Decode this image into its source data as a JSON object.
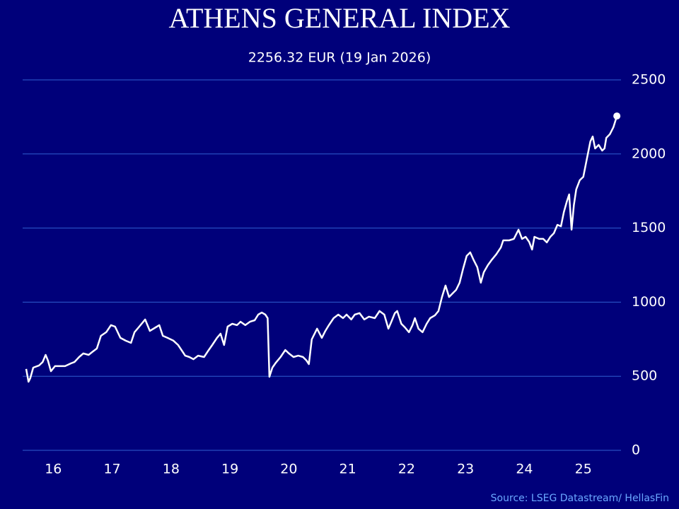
{
  "chart_data": {
    "type": "line",
    "title": "ATHENS GENERAL INDEX",
    "subtitle": "2256.32 EUR (19 Jan 2026)",
    "source": "Source: LSEG Datastream/ HellasFin",
    "x": [
      16.04,
      16.08,
      16.11,
      16.16,
      16.26,
      16.32,
      16.37,
      16.41,
      16.46,
      16.53,
      16.62,
      16.7,
      16.8,
      16.86,
      16.94,
      17.01,
      17.1,
      17.16,
      17.24,
      17.31,
      17.4,
      17.48,
      17.55,
      17.64,
      17.73,
      17.82,
      17.88,
      17.96,
      18.06,
      18.14,
      18.24,
      18.3,
      18.36,
      18.44,
      18.54,
      18.62,
      18.7,
      18.74,
      18.81,
      18.88,
      18.96,
      19.06,
      19.14,
      19.2,
      19.28,
      19.34,
      19.4,
      19.46,
      19.54,
      19.62,
      19.68,
      19.76,
      19.84,
      19.92,
      19.98,
      20.04,
      20.1,
      20.14,
      20.17,
      20.22,
      20.28,
      20.36,
      20.44,
      20.5,
      20.58,
      20.66,
      20.74,
      20.8,
      20.84,
      20.89,
      20.98,
      21.06,
      21.12,
      21.18,
      21.26,
      21.34,
      21.42,
      21.48,
      21.56,
      21.62,
      21.7,
      21.78,
      21.86,
      21.96,
      22.04,
      22.12,
      22.19,
      22.24,
      22.3,
      22.34,
      22.41,
      22.47,
      22.54,
      22.6,
      22.64,
      22.7,
      22.77,
      22.84,
      22.9,
      22.98,
      23.04,
      23.1,
      23.16,
      23.22,
      23.28,
      23.34,
      23.4,
      23.46,
      23.52,
      23.58,
      23.64,
      23.7,
      23.76,
      23.81,
      23.88,
      23.94,
      24.02,
      24.1,
      24.14,
      24.24,
      24.32,
      24.4,
      24.46,
      24.52,
      24.58,
      24.63,
      24.67,
      24.75,
      24.82,
      24.88,
      24.94,
      25.0,
      25.06,
      25.12,
      25.17,
      25.22,
      25.26,
      25.3,
      25.34,
      25.38,
      25.44,
      25.5,
      25.56,
      25.62,
      25.66,
      25.7,
      25.76,
      25.82,
      25.86,
      25.89,
      25.95,
      26.01,
      26.07
    ],
    "series": [
      {
        "name": "Athens General Index",
        "color": "#ffffff",
        "values": [
          549,
          463,
          487,
          558,
          573,
          596,
          644,
          606,
          534,
          568,
          568,
          568,
          587,
          596,
          630,
          654,
          644,
          663,
          687,
          773,
          797,
          845,
          835,
          759,
          740,
          725,
          797,
          835,
          883,
          806,
          830,
          845,
          773,
          759,
          740,
          711,
          663,
          639,
          630,
          615,
          639,
          630,
          677,
          711,
          759,
          787,
          711,
          835,
          854,
          845,
          868,
          845,
          868,
          878,
          916,
          930,
          916,
          892,
          496,
          558,
          592,
          630,
          677,
          654,
          630,
          639,
          630,
          606,
          582,
          749,
          821,
          759,
          806,
          845,
          892,
          916,
          892,
          916,
          883,
          916,
          926,
          883,
          902,
          892,
          940,
          916,
          821,
          868,
          926,
          940,
          854,
          830,
          797,
          845,
          892,
          821,
          797,
          854,
          892,
          911,
          940,
          1035,
          1112,
          1035,
          1059,
          1083,
          1131,
          1226,
          1312,
          1336,
          1283,
          1236,
          1131,
          1202,
          1250,
          1283,
          1322,
          1369,
          1417,
          1417,
          1427,
          1489,
          1427,
          1441,
          1407,
          1355,
          1441,
          1427,
          1427,
          1403,
          1441,
          1465,
          1522,
          1512,
          1608,
          1679,
          1727,
          1489,
          1656,
          1761,
          1823,
          1846,
          1966,
          2085,
          2118,
          2037,
          2061,
          2023,
          2037,
          2109,
          2133,
          2180,
          2256.32
        ]
      }
    ],
    "xlim": [
      15.98,
      26.14
    ],
    "xticks": [
      {
        "value": 16.5,
        "label": "16"
      },
      {
        "value": 17.5,
        "label": "17"
      },
      {
        "value": 18.5,
        "label": "18"
      },
      {
        "value": 19.5,
        "label": "19"
      },
      {
        "value": 20.5,
        "label": "20"
      },
      {
        "value": 21.5,
        "label": "21"
      },
      {
        "value": 22.5,
        "label": "22"
      },
      {
        "value": 23.5,
        "label": "23"
      },
      {
        "value": 24.5,
        "label": "24"
      },
      {
        "value": 25.5,
        "label": "25"
      }
    ],
    "ylim": [
      0,
      2500
    ],
    "yticks": [
      0,
      500,
      1000,
      1500,
      2000,
      2500
    ],
    "grid": true,
    "grid_color": "#2f5fd0",
    "background": "#00007a"
  }
}
